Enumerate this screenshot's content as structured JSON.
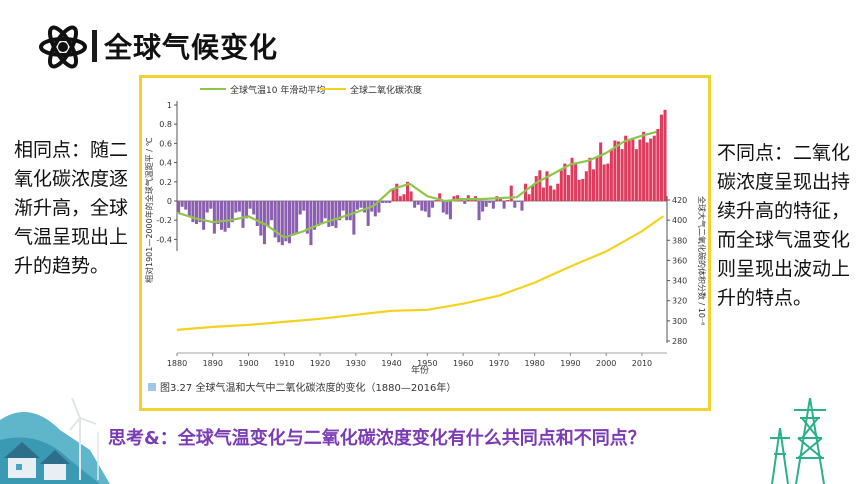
{
  "slide": {
    "title": "全球气候变化",
    "left_text": "相同点：随二氧化碳浓度逐渐升高，全球气温呈现出上升的趋势。",
    "right_text": "不同点：二氧化碳浓度呈现出持续升高的特征，而全球气温变化则呈现出波动上升的特点。",
    "question": "思考&：全球气温变化与二氧化碳浓度变化有什么共同点和不同点？"
  },
  "colors": {
    "anomaly_positive": "#e03a5c",
    "anomaly_negative": "#8a5fb0",
    "moving_average": "#8fc64a",
    "co2": "#f5d21e",
    "frame": "#f2d22e",
    "question": "#7b3bb5"
  },
  "chart_data": {
    "type": "bar",
    "caption": "图3.27   全球气温和大气中二氧化碳浓度的变化（1880—2016年）",
    "xlabel": "年份",
    "ylabel_left": "相对1901—2000年的全球气温距平 / ℃",
    "ylabel_right": "全球大气二氧化碳的体积分数 / 10⁻⁶",
    "x_ticks": [
      1880,
      1890,
      1900,
      1910,
      1920,
      1930,
      1940,
      1950,
      1960,
      1970,
      1980,
      1990,
      2000,
      2010
    ],
    "y_left_ticks": [
      -0.4,
      -0.2,
      0,
      0.2,
      0.4,
      0.6,
      0.8,
      1
    ],
    "y_left_tick_labels": [
      "-0.4",
      "-0.2",
      "0",
      "0.2",
      "0.4",
      "0.6",
      "0.8",
      "1"
    ],
    "y_left_range": [
      -0.5,
      1.0
    ],
    "y_right_ticks": [
      280,
      300,
      320,
      340,
      360,
      380,
      400,
      420
    ],
    "y_right_range": [
      280,
      420
    ],
    "legend": [
      "全球气温10 年滑动平均",
      "全球二氧化碳浓度"
    ],
    "series": [
      {
        "name": "全球气温10 年滑动平均",
        "kind": "line",
        "axis": "left",
        "x": [
          1880,
          1885,
          1890,
          1895,
          1900,
          1905,
          1910,
          1915,
          1920,
          1925,
          1930,
          1935,
          1940,
          1945,
          1950,
          1955,
          1960,
          1965,
          1970,
          1975,
          1980,
          1985,
          1990,
          1995,
          2000,
          2005,
          2010,
          2014
        ],
        "y": [
          -0.12,
          -0.18,
          -0.22,
          -0.2,
          -0.16,
          -0.25,
          -0.38,
          -0.32,
          -0.24,
          -0.18,
          -0.12,
          -0.05,
          0.12,
          0.18,
          0.05,
          0.0,
          0.02,
          0.02,
          0.03,
          0.04,
          0.18,
          0.28,
          0.38,
          0.42,
          0.5,
          0.62,
          0.68,
          0.72
        ]
      },
      {
        "name": "全球二氧化碳浓度",
        "kind": "line",
        "axis": "right",
        "x": [
          1880,
          1890,
          1900,
          1910,
          1920,
          1930,
          1940,
          1950,
          1960,
          1970,
          1980,
          1990,
          2000,
          2010,
          2016
        ],
        "y": [
          291,
          294,
          296,
          299,
          302,
          306,
          310,
          311,
          317,
          325,
          338,
          354,
          369,
          389,
          404
        ]
      },
      {
        "name": "全球气温距平",
        "kind": "bar",
        "axis": "left",
        "x": [
          1880,
          1881,
          1882,
          1883,
          1884,
          1885,
          1886,
          1887,
          1888,
          1889,
          1890,
          1891,
          1892,
          1893,
          1894,
          1895,
          1896,
          1897,
          1898,
          1899,
          1900,
          1901,
          1902,
          1903,
          1904,
          1905,
          1906,
          1907,
          1908,
          1909,
          1910,
          1911,
          1912,
          1913,
          1914,
          1915,
          1916,
          1917,
          1918,
          1919,
          1920,
          1921,
          1922,
          1923,
          1924,
          1925,
          1926,
          1927,
          1928,
          1929,
          1930,
          1931,
          1932,
          1933,
          1934,
          1935,
          1936,
          1937,
          1938,
          1939,
          1940,
          1941,
          1942,
          1943,
          1944,
          1945,
          1946,
          1947,
          1948,
          1949,
          1950,
          1951,
          1952,
          1953,
          1954,
          1955,
          1956,
          1957,
          1958,
          1959,
          1960,
          1961,
          1962,
          1963,
          1964,
          1965,
          1966,
          1967,
          1968,
          1969,
          1970,
          1971,
          1972,
          1973,
          1974,
          1975,
          1976,
          1977,
          1978,
          1979,
          1980,
          1981,
          1982,
          1983,
          1984,
          1985,
          1986,
          1987,
          1988,
          1989,
          1990,
          1991,
          1992,
          1993,
          1994,
          1995,
          1996,
          1997,
          1998,
          1999,
          2000,
          2001,
          2002,
          2003,
          2004,
          2005,
          2006,
          2007,
          2008,
          2009,
          2010,
          2011,
          2012,
          2013,
          2014,
          2015,
          2016
        ],
        "y": [
          -0.12,
          -0.06,
          -0.09,
          -0.16,
          -0.22,
          -0.24,
          -0.22,
          -0.3,
          -0.12,
          -0.08,
          -0.34,
          -0.24,
          -0.3,
          -0.32,
          -0.28,
          -0.22,
          -0.12,
          -0.11,
          -0.28,
          -0.18,
          -0.08,
          -0.14,
          -0.26,
          -0.36,
          -0.45,
          -0.26,
          -0.2,
          -0.38,
          -0.43,
          -0.46,
          -0.42,
          -0.44,
          -0.36,
          -0.34,
          -0.14,
          -0.1,
          -0.34,
          -0.46,
          -0.3,
          -0.26,
          -0.24,
          -0.18,
          -0.27,
          -0.26,
          -0.28,
          -0.2,
          -0.1,
          -0.2,
          -0.2,
          -0.35,
          -0.09,
          -0.07,
          -0.12,
          -0.26,
          -0.11,
          -0.16,
          -0.12,
          -0.02,
          -0.02,
          -0.02,
          0.12,
          0.18,
          0.05,
          0.07,
          0.2,
          0.1,
          -0.07,
          -0.04,
          -0.1,
          -0.11,
          -0.17,
          -0.07,
          0.01,
          0.08,
          -0.12,
          -0.14,
          -0.19,
          0.05,
          0.06,
          0.03,
          -0.03,
          0.06,
          0.03,
          0.05,
          -0.2,
          -0.11,
          -0.06,
          -0.02,
          -0.08,
          0.05,
          0.03,
          -0.08,
          0.01,
          0.16,
          -0.07,
          -0.01,
          -0.1,
          0.18,
          0.07,
          0.16,
          0.26,
          0.32,
          0.14,
          0.31,
          0.16,
          0.12,
          0.18,
          0.32,
          0.39,
          0.27,
          0.45,
          0.4,
          0.22,
          0.23,
          0.31,
          0.45,
          0.33,
          0.46,
          0.61,
          0.38,
          0.39,
          0.54,
          0.63,
          0.62,
          0.54,
          0.68,
          0.64,
          0.66,
          0.54,
          0.64,
          0.72,
          0.61,
          0.65,
          0.68,
          0.75,
          0.9,
          0.95
        ]
      }
    ]
  }
}
